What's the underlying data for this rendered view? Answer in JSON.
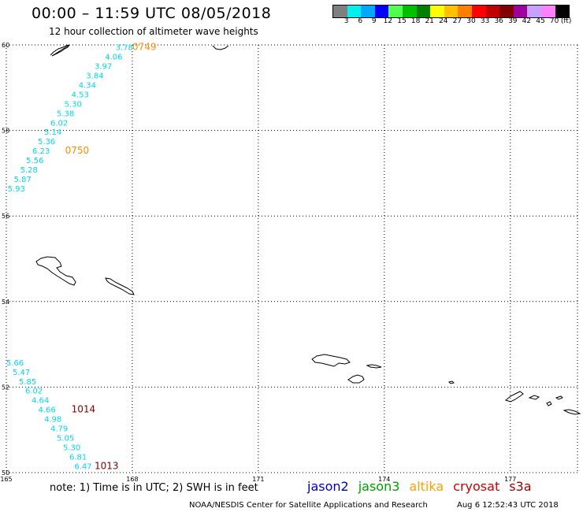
{
  "header": {
    "title": "00:00 – 11:59 UTC 08/05/2018",
    "subtitle": "12 hour collection of altimeter wave heights"
  },
  "legend": {
    "unit": "(ft)",
    "labels": [
      "3",
      "6",
      "9",
      "12",
      "15",
      "18",
      "21",
      "24",
      "27",
      "30",
      "33",
      "36",
      "39",
      "42",
      "45",
      "70"
    ],
    "colors": [
      "#7f7f7f",
      "#00f0f0",
      "#00a8ff",
      "#0000ff",
      "#50ff50",
      "#00c000",
      "#008000",
      "#ffff00",
      "#ffc000",
      "#ff8000",
      "#ff0000",
      "#c00000",
      "#800000",
      "#a000a0",
      "#c8a0ff",
      "#ff80ff",
      "#000000"
    ]
  },
  "map": {
    "lat_min": 50,
    "lat_max": 60,
    "lon_min": 165,
    "lon_max": 178.6,
    "y_ticks": [
      {
        "v": 60,
        "label": "60"
      },
      {
        "v": 58,
        "label": "58"
      },
      {
        "v": 56,
        "label": "56"
      },
      {
        "v": 54,
        "label": "54"
      },
      {
        "v": 52,
        "label": "52"
      },
      {
        "v": 50,
        "label": "50"
      }
    ],
    "x_ticks": [
      {
        "v": 165,
        "label": "165"
      },
      {
        "v": 168,
        "label": "168"
      },
      {
        "v": 171,
        "label": "171"
      },
      {
        "v": 174,
        "label": "174"
      },
      {
        "v": 177,
        "label": "177"
      }
    ]
  },
  "observations": {
    "track1": [
      {
        "lat": 59.95,
        "lon": 167.6,
        "swh": "3.78"
      },
      {
        "lat": 59.73,
        "lon": 167.35,
        "swh": "4.06"
      },
      {
        "lat": 59.51,
        "lon": 167.1,
        "swh": "3.97"
      },
      {
        "lat": 59.29,
        "lon": 166.9,
        "swh": "3.84"
      },
      {
        "lat": 59.07,
        "lon": 166.72,
        "swh": "4.34"
      },
      {
        "lat": 58.85,
        "lon": 166.55,
        "swh": "4.53"
      },
      {
        "lat": 58.63,
        "lon": 166.38,
        "swh": "5.30"
      },
      {
        "lat": 58.41,
        "lon": 166.2,
        "swh": "5.38"
      },
      {
        "lat": 58.19,
        "lon": 166.05,
        "swh": "6.02"
      },
      {
        "lat": 57.97,
        "lon": 165.9,
        "swh": "5.14"
      },
      {
        "lat": 57.75,
        "lon": 165.75,
        "swh": "5.36"
      },
      {
        "lat": 57.53,
        "lon": 165.62,
        "swh": "6.23"
      },
      {
        "lat": 57.31,
        "lon": 165.47,
        "swh": "5.56"
      },
      {
        "lat": 57.09,
        "lon": 165.33,
        "swh": "5.28"
      },
      {
        "lat": 56.87,
        "lon": 165.18,
        "swh": "5.87"
      },
      {
        "lat": 56.65,
        "lon": 165.03,
        "swh": "5.93"
      }
    ],
    "track2": [
      {
        "lat": 52.58,
        "lon": 165.0,
        "swh": "5.66"
      },
      {
        "lat": 52.36,
        "lon": 165.15,
        "swh": "5.47"
      },
      {
        "lat": 52.14,
        "lon": 165.3,
        "swh": "5.85"
      },
      {
        "lat": 51.92,
        "lon": 165.45,
        "swh": "6.02"
      },
      {
        "lat": 51.7,
        "lon": 165.6,
        "swh": "4.64"
      },
      {
        "lat": 51.48,
        "lon": 165.76,
        "swh": "4.66"
      },
      {
        "lat": 51.26,
        "lon": 165.9,
        "swh": "4.98"
      },
      {
        "lat": 51.04,
        "lon": 166.05,
        "swh": "4.79"
      },
      {
        "lat": 50.82,
        "lon": 166.2,
        "swh": "5.05"
      },
      {
        "lat": 50.6,
        "lon": 166.35,
        "swh": "5.30"
      },
      {
        "lat": 50.38,
        "lon": 166.5,
        "swh": "6.81"
      },
      {
        "lat": 50.16,
        "lon": 166.62,
        "swh": "6.47"
      }
    ],
    "time_labels": [
      {
        "text": "0749",
        "lat": 59.95,
        "lon": 168.0,
        "color": "#ff8c00"
      },
      {
        "text": "0750",
        "lat": 57.53,
        "lon": 166.4,
        "color": "#ff8c00"
      },
      {
        "text": "1014",
        "lat": 51.48,
        "lon": 166.55,
        "color": "#800000"
      },
      {
        "text": "1013",
        "lat": 50.16,
        "lon": 167.1,
        "color": "#800000"
      }
    ]
  },
  "note": "note: 1) Time is in UTC; 2) SWH is in feet",
  "satellites": [
    {
      "name": "jason2",
      "color": "#0000cc"
    },
    {
      "name": "jason3",
      "color": "#00a000"
    },
    {
      "name": "altika",
      "color": "#ffa000"
    },
    {
      "name": "cryosat",
      "color": "#cc0000"
    },
    {
      "name": "s3a",
      "color": "#990000"
    }
  ],
  "footer": {
    "credit": "NOAA/NESDIS Center for Satellite Applications and Research",
    "timestamp": "Aug  6 12:52:43 UTC 2018"
  }
}
